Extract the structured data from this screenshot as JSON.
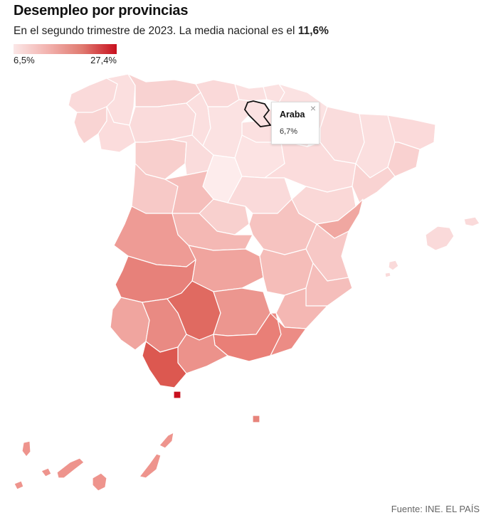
{
  "header": {
    "title": "Desempleo por provincias",
    "subtitle_text": "En el segundo trimestre de 2023. La media nacional es el ",
    "subtitle_value": "11,6%"
  },
  "legend": {
    "min_label": "6,5%",
    "max_label": "27,4%",
    "min_value": 6.5,
    "max_value": 27.4
  },
  "tooltip": {
    "name": "Araba",
    "value": "6,7%",
    "close_icon": "close-icon"
  },
  "source": "Fuente: INE. EL PAÍS",
  "colors": {
    "low": "#fbe3e3",
    "high": "#c8101e",
    "border": "#ffffff"
  },
  "map_data": {
    "type": "choropleth",
    "unit": "%",
    "selected_region": "Araba",
    "regions": [
      {
        "name": "Araba",
        "value": 6.7
      }
    ]
  }
}
